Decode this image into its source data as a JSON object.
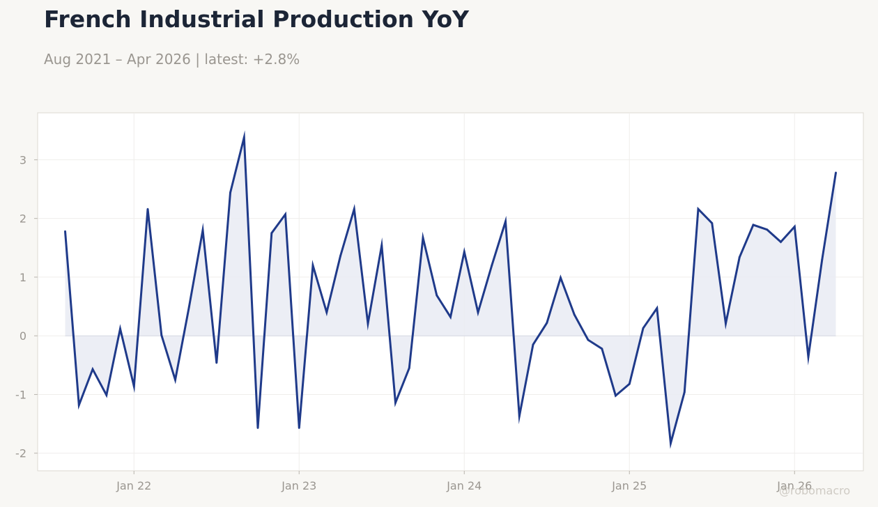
{
  "header": {
    "title": "French Industrial Production YoY",
    "subtitle": "Aug 2021 – Apr 2026 | latest: +2.8%"
  },
  "watermark": "@robomacro",
  "colors": {
    "background": "#f8f7f4",
    "plot_background": "#ffffff",
    "line": "#1f3a8a",
    "fill": "#e9ebf3",
    "title": "#1c2536",
    "muted_text": "#9a9690"
  },
  "chart_data": {
    "type": "area",
    "title": "French Industrial Production YoY",
    "subtitle": "Aug 2021 – Apr 2026 | latest: +2.8%",
    "xlabel": "",
    "ylabel": "",
    "x_tick_labels": [
      "Jan 22",
      "Jan 23",
      "Jan 24",
      "Jan 25",
      "Jan 26"
    ],
    "x_tick_dates": [
      "2022-01",
      "2023-01",
      "2024-01",
      "2025-01",
      "2026-01"
    ],
    "y_ticks": [
      -2,
      -1,
      0,
      1,
      2,
      3
    ],
    "xlim": [
      "2021-06",
      "2026-06"
    ],
    "ylim": [
      -2.3,
      3.8
    ],
    "grid": true,
    "legend": "none",
    "baseline": 0,
    "x": [
      "2021-08",
      "2021-09",
      "2021-10",
      "2021-11",
      "2021-12",
      "2022-01",
      "2022-02",
      "2022-03",
      "2022-04",
      "2022-05",
      "2022-06",
      "2022-07",
      "2022-08",
      "2022-09",
      "2022-10",
      "2022-11",
      "2022-12",
      "2023-01",
      "2023-02",
      "2023-03",
      "2023-04",
      "2023-05",
      "2023-06",
      "2023-07",
      "2023-08",
      "2023-09",
      "2023-10",
      "2023-11",
      "2023-12",
      "2024-01",
      "2024-02",
      "2024-03",
      "2024-04",
      "2024-05",
      "2024-06",
      "2024-07",
      "2024-08",
      "2024-09",
      "2024-10",
      "2024-11",
      "2024-12",
      "2025-01",
      "2025-02",
      "2025-03",
      "2025-04",
      "2025-05",
      "2025-06",
      "2025-07",
      "2025-08",
      "2025-09",
      "2025-10",
      "2025-11",
      "2025-12",
      "2026-01",
      "2026-02",
      "2026-03",
      "2026-04"
    ],
    "values": [
      1.78,
      -1.18,
      -0.57,
      -1.01,
      0.12,
      -0.86,
      2.16,
      0.01,
      -0.75,
      0.49,
      1.8,
      -0.46,
      2.44,
      3.38,
      -1.57,
      1.75,
      2.07,
      -1.57,
      1.2,
      0.4,
      1.36,
      2.16,
      0.21,
      1.54,
      -1.14,
      -0.55,
      1.67,
      0.69,
      0.32,
      1.43,
      0.4,
      1.2,
      1.95,
      -1.37,
      -0.15,
      0.22,
      0.99,
      0.36,
      -0.07,
      -0.22,
      -1.02,
      -0.82,
      0.13,
      0.47,
      -1.83,
      -0.96,
      2.16,
      1.92,
      0.21,
      1.34,
      1.89,
      1.81,
      1.6,
      1.86,
      -0.36,
      1.3,
      2.78
    ]
  }
}
